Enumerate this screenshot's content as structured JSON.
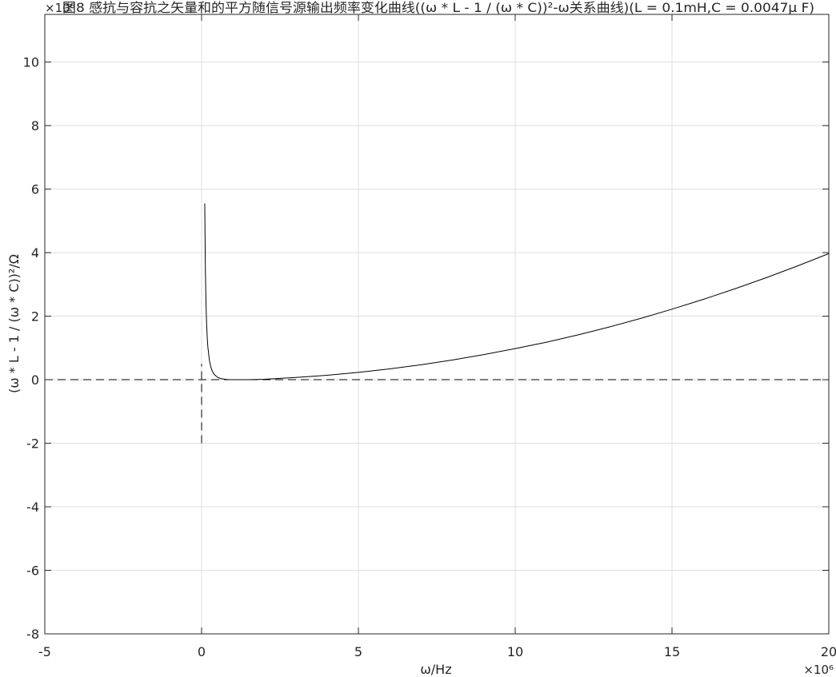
{
  "chart_data": {
    "type": "line",
    "title": "图8 感抗与容抗之矢量和的平方随信号源输出频率变化曲线((ω * L - 1 / (ω * C))²-ω关系曲线)(L = 0.1mH,C = 0.0047μ F)",
    "xlabel": "ω/Hz",
    "ylabel": "(ω * L - 1 / (ω * C))²/Ω",
    "x_exponent_label": "×10⁶",
    "y_exponent_label": "×10⁸",
    "xlim": [
      -5,
      20
    ],
    "ylim": [
      -8,
      11.5
    ],
    "x_ticks": [
      -5,
      0,
      5,
      10,
      15,
      20
    ],
    "x_tick_labels": [
      "-5",
      "0",
      "5",
      "10",
      "15",
      "20"
    ],
    "y_ticks": [
      -8,
      -6,
      -4,
      -2,
      0,
      2,
      4,
      6,
      8,
      10
    ],
    "y_tick_labels": [
      "-8",
      "-6",
      "-4",
      "-2",
      "0",
      "2",
      "4",
      "6",
      "8",
      "10"
    ],
    "grid": true,
    "colors": {
      "curve": "#000000",
      "grid": "#dfdfdf",
      "axes": "#262626"
    },
    "series": [
      {
        "style": "solid",
        "x": [
          0.1,
          0.12,
          0.14,
          0.16,
          0.18,
          0.2,
          0.25,
          0.3,
          0.35,
          0.4,
          0.5,
          0.6,
          0.7,
          0.8,
          0.9,
          1.0,
          1.2,
          1.5,
          2,
          3,
          4,
          5,
          6,
          7,
          8,
          9,
          10,
          11,
          12,
          13,
          14,
          15,
          16,
          17,
          18,
          19,
          20
        ],
        "y": [
          5.55,
          3.5,
          2.4,
          1.75,
          1.32,
          1.03,
          0.6,
          0.38,
          0.25,
          0.17,
          0.08,
          0.04,
          0.02,
          0.008,
          0.002,
          0.001,
          0.0,
          0.002,
          0.015,
          0.07,
          0.14,
          0.23,
          0.34,
          0.47,
          0.62,
          0.79,
          0.98,
          1.18,
          1.41,
          1.66,
          1.93,
          2.22,
          2.53,
          2.86,
          3.21,
          3.58,
          3.97
        ]
      },
      {
        "style": "dashed",
        "x": [
          -5,
          20
        ],
        "y": [
          0,
          0
        ]
      },
      {
        "style": "dashed",
        "x": [
          0,
          0
        ],
        "y": [
          -2,
          0.5
        ]
      }
    ]
  }
}
